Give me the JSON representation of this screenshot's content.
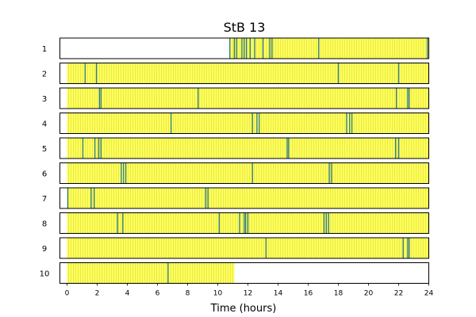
{
  "chart_data": {
    "type": "heatmap",
    "title": "StB 13",
    "xlabel": "Time (hours)",
    "xlim": [
      0,
      24
    ],
    "xticks": [
      "0",
      "2",
      "4",
      "6",
      "8",
      "10",
      "12",
      "14",
      "16",
      "18",
      "20",
      "22",
      "24"
    ],
    "rows": [
      {
        "label": "1",
        "start": 10.8,
        "end": 24.0,
        "events": [
          10.8,
          11.1,
          11.25,
          11.6,
          11.75,
          11.9,
          12.15,
          12.45,
          13.0,
          13.45,
          13.6,
          16.7,
          23.9
        ]
      },
      {
        "label": "2",
        "start": 0.0,
        "end": 24.0,
        "events": [
          1.2,
          1.95,
          18.0,
          22.0
        ]
      },
      {
        "label": "3",
        "start": 0.0,
        "end": 24.0,
        "events": [
          2.15,
          2.25,
          8.7,
          21.85,
          22.6,
          22.7
        ]
      },
      {
        "label": "4",
        "start": 0.0,
        "end": 24.0,
        "events": [
          6.9,
          12.3,
          12.6,
          12.75,
          18.55,
          18.75,
          18.9
        ]
      },
      {
        "label": "5",
        "start": 0.0,
        "end": 24.0,
        "events": [
          1.05,
          1.85,
          2.1,
          2.25,
          14.6,
          14.7,
          21.8,
          22.0
        ]
      },
      {
        "label": "6",
        "start": 0.0,
        "end": 24.0,
        "events": [
          3.6,
          3.75,
          3.9,
          12.3,
          17.4,
          17.55
        ]
      },
      {
        "label": "7",
        "start": 0.0,
        "end": 24.0,
        "events": [
          0.05,
          1.6,
          1.8,
          9.2,
          9.35
        ]
      },
      {
        "label": "8",
        "start": 0.0,
        "end": 24.0,
        "events": [
          3.35,
          3.7,
          10.1,
          11.45,
          11.75,
          11.85,
          12.0,
          17.05,
          17.2,
          17.35
        ]
      },
      {
        "label": "9",
        "start": 0.0,
        "end": 24.0,
        "events": [
          13.2,
          22.3,
          22.6,
          22.7
        ]
      },
      {
        "label": "10",
        "start": 0.0,
        "end": 11.1,
        "events": [
          6.7
        ]
      }
    ],
    "colors": {
      "fill": "#ffff5a",
      "fill_stripe": "#e8e84a",
      "event": "#2a7a8c",
      "frame": "#000000"
    }
  }
}
